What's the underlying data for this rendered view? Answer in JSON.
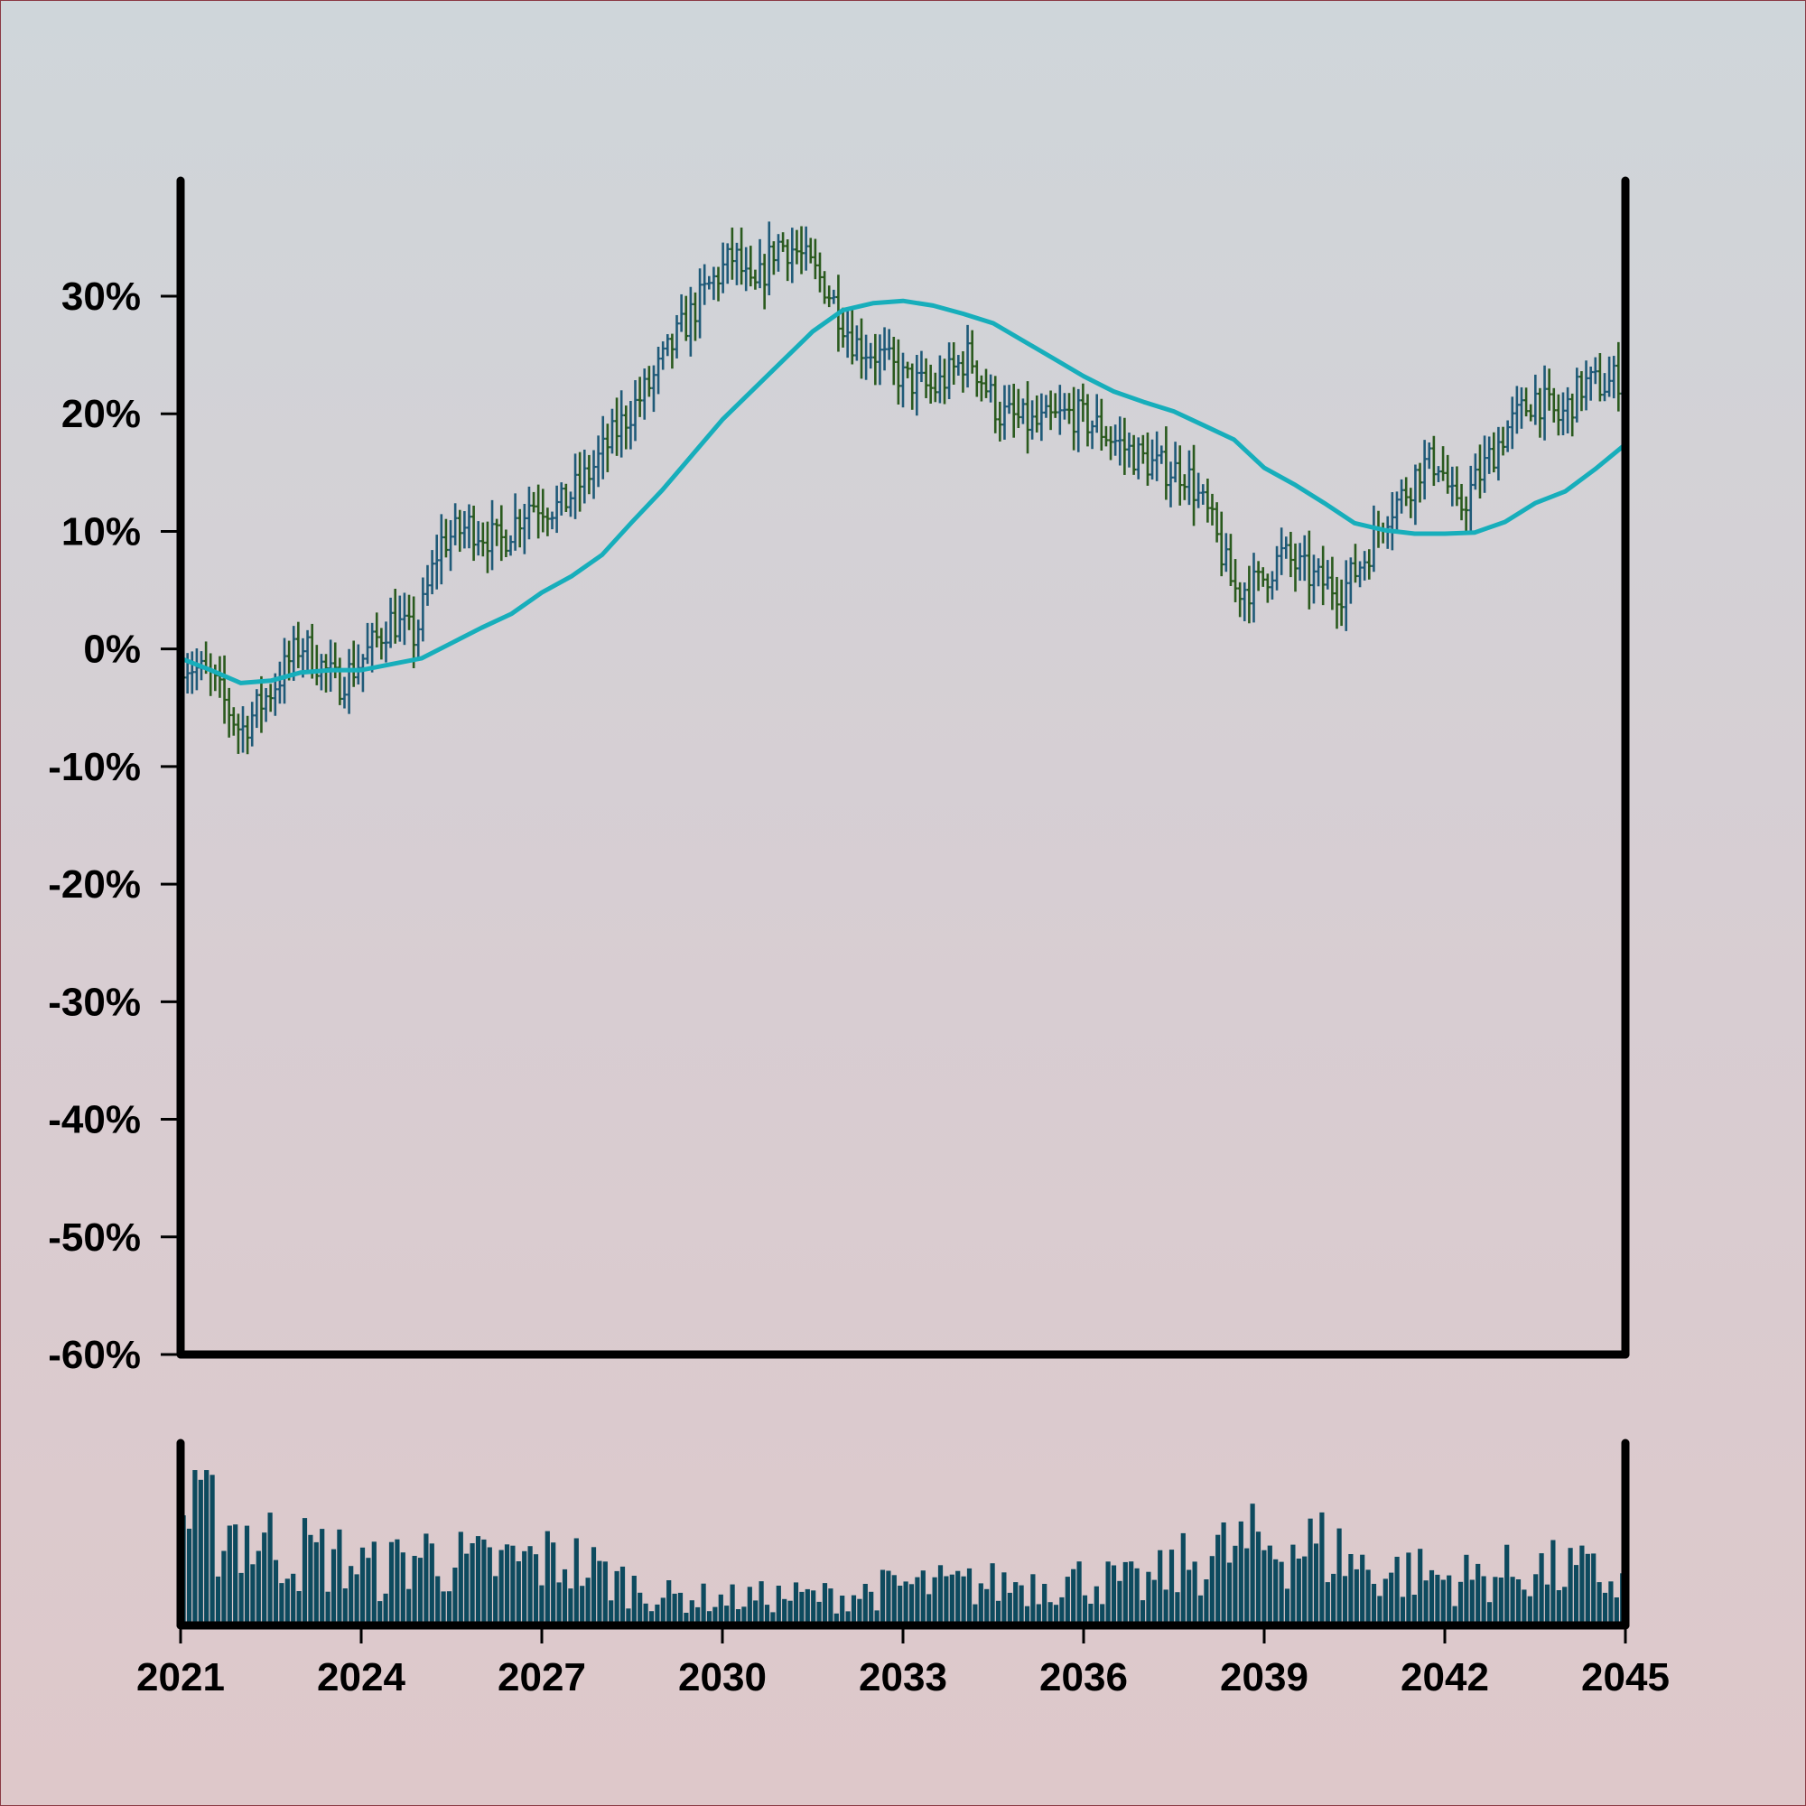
{
  "chart_data": {
    "type": "ohlc",
    "title": "",
    "xlabel": "",
    "ylabel": "",
    "x_range": [
      2021,
      2045
    ],
    "ylim": [
      -60,
      40
    ],
    "y_ticks": [
      -60,
      -50,
      -40,
      -30,
      -20,
      -10,
      0,
      10,
      20,
      30
    ],
    "y_tick_labels": [
      "-60%",
      "-50%",
      "-40%",
      "-30%",
      "-20%",
      "-10%",
      "0%",
      "10%",
      "20%",
      "30%"
    ],
    "x_ticks": [
      2021,
      2024,
      2027,
      2030,
      2033,
      2036,
      2039,
      2042,
      2045
    ],
    "x_tick_labels": [
      "2021",
      "2024",
      "2027",
      "2030",
      "2033",
      "2036",
      "2039",
      "2042",
      "2045"
    ],
    "grid": false,
    "legend": "none",
    "colors": {
      "up_bar": "#1f5a78",
      "down_bar": "#2a5a1e",
      "moving_average": "#17aebb",
      "volume": "#0d4a5e",
      "axis": "#000000"
    },
    "price_path": [
      [
        2021.0,
        -0.8
      ],
      [
        2021.5,
        -2.5
      ],
      [
        2022.0,
        -7.0
      ],
      [
        2022.5,
        -3.5
      ],
      [
        2023.0,
        0.5
      ],
      [
        2023.6,
        -3.0
      ],
      [
        2024.0,
        -1.0
      ],
      [
        2024.5,
        2.5
      ],
      [
        2024.9,
        1.0
      ],
      [
        2025.3,
        9.0
      ],
      [
        2025.8,
        10.5
      ],
      [
        2026.3,
        9.0
      ],
      [
        2026.8,
        12.5
      ],
      [
        2027.3,
        12.0
      ],
      [
        2027.8,
        15.0
      ],
      [
        2028.3,
        19.0
      ],
      [
        2028.8,
        22.5
      ],
      [
        2029.3,
        27.0
      ],
      [
        2029.8,
        31.0
      ],
      [
        2030.2,
        33.5
      ],
      [
        2030.5,
        30.0
      ],
      [
        2030.9,
        34.5
      ],
      [
        2031.2,
        34.0
      ],
      [
        2031.7,
        31.0
      ],
      [
        2032.2,
        26.0
      ],
      [
        2032.6,
        25.0
      ],
      [
        2033.0,
        23.0
      ],
      [
        2033.5,
        22.0
      ],
      [
        2034.1,
        25.0
      ],
      [
        2034.6,
        20.0
      ],
      [
        2035.2,
        19.0
      ],
      [
        2035.8,
        20.0
      ],
      [
        2036.2,
        19.0
      ],
      [
        2036.7,
        17.0
      ],
      [
        2037.2,
        15.5
      ],
      [
        2037.7,
        15.0
      ],
      [
        2038.1,
        11.0
      ],
      [
        2038.5,
        5.0
      ],
      [
        2038.9,
        5.5
      ],
      [
        2039.3,
        8.0
      ],
      [
        2039.8,
        6.0
      ],
      [
        2040.3,
        5.0
      ],
      [
        2040.7,
        8.0
      ],
      [
        2041.0,
        11.5
      ],
      [
        2041.3,
        13.0
      ],
      [
        2041.6,
        15.5
      ],
      [
        2041.9,
        16.0
      ],
      [
        2042.2,
        11.5
      ],
      [
        2042.6,
        15.0
      ],
      [
        2043.0,
        18.5
      ],
      [
        2043.5,
        21.5
      ],
      [
        2043.9,
        19.5
      ],
      [
        2044.3,
        22.5
      ],
      [
        2044.7,
        22.5
      ],
      [
        2045.0,
        23.5
      ]
    ],
    "moving_average": [
      [
        2021.0,
        -0.8
      ],
      [
        2021.5,
        -1.8
      ],
      [
        2022.0,
        -2.9
      ],
      [
        2022.5,
        -2.7
      ],
      [
        2023.0,
        -2.0
      ],
      [
        2023.5,
        -1.8
      ],
      [
        2024.0,
        -1.8
      ],
      [
        2024.5,
        -1.3
      ],
      [
        2025.0,
        -0.8
      ],
      [
        2025.5,
        0.5
      ],
      [
        2026.0,
        1.8
      ],
      [
        2026.5,
        3.0
      ],
      [
        2027.0,
        4.8
      ],
      [
        2027.5,
        6.2
      ],
      [
        2028.0,
        8.0
      ],
      [
        2028.5,
        10.8
      ],
      [
        2029.0,
        13.5
      ],
      [
        2029.5,
        16.5
      ],
      [
        2030.0,
        19.5
      ],
      [
        2030.5,
        22.0
      ],
      [
        2031.0,
        24.5
      ],
      [
        2031.5,
        27.0
      ],
      [
        2032.0,
        28.8
      ],
      [
        2032.5,
        29.4
      ],
      [
        2033.0,
        29.6
      ],
      [
        2033.5,
        29.2
      ],
      [
        2034.0,
        28.5
      ],
      [
        2034.5,
        27.7
      ],
      [
        2035.0,
        26.2
      ],
      [
        2035.5,
        24.7
      ],
      [
        2036.0,
        23.2
      ],
      [
        2036.5,
        21.9
      ],
      [
        2037.0,
        21.0
      ],
      [
        2037.5,
        20.2
      ],
      [
        2038.0,
        19.0
      ],
      [
        2038.5,
        17.8
      ],
      [
        2039.0,
        15.4
      ],
      [
        2039.5,
        14.0
      ],
      [
        2040.0,
        12.4
      ],
      [
        2040.5,
        10.7
      ],
      [
        2041.0,
        10.1
      ],
      [
        2041.5,
        9.8
      ],
      [
        2042.0,
        9.8
      ],
      [
        2042.5,
        9.9
      ],
      [
        2043.0,
        10.8
      ],
      [
        2043.5,
        12.4
      ],
      [
        2044.0,
        13.4
      ],
      [
        2044.5,
        15.3
      ],
      [
        2045.0,
        17.4
      ]
    ],
    "volume_profile": [
      [
        2021.0,
        0.82
      ],
      [
        2021.7,
        0.78
      ],
      [
        2022.4,
        0.62
      ],
      [
        2023.0,
        0.55
      ],
      [
        2023.7,
        0.5
      ],
      [
        2024.3,
        0.4
      ],
      [
        2025.0,
        0.55
      ],
      [
        2025.8,
        0.45
      ],
      [
        2026.6,
        0.48
      ],
      [
        2027.4,
        0.5
      ],
      [
        2028.2,
        0.35
      ],
      [
        2029.0,
        0.22
      ],
      [
        2030.0,
        0.2
      ],
      [
        2031.0,
        0.22
      ],
      [
        2032.0,
        0.22
      ],
      [
        2033.0,
        0.3
      ],
      [
        2034.0,
        0.3
      ],
      [
        2035.0,
        0.32
      ],
      [
        2036.0,
        0.35
      ],
      [
        2037.0,
        0.3
      ],
      [
        2037.8,
        0.48
      ],
      [
        2038.6,
        0.58
      ],
      [
        2039.4,
        0.62
      ],
      [
        2040.1,
        0.58
      ],
      [
        2040.8,
        0.4
      ],
      [
        2041.5,
        0.4
      ],
      [
        2042.1,
        0.35
      ],
      [
        2042.8,
        0.38
      ],
      [
        2043.5,
        0.42
      ],
      [
        2044.3,
        0.4
      ],
      [
        2045.0,
        0.3
      ]
    ]
  }
}
